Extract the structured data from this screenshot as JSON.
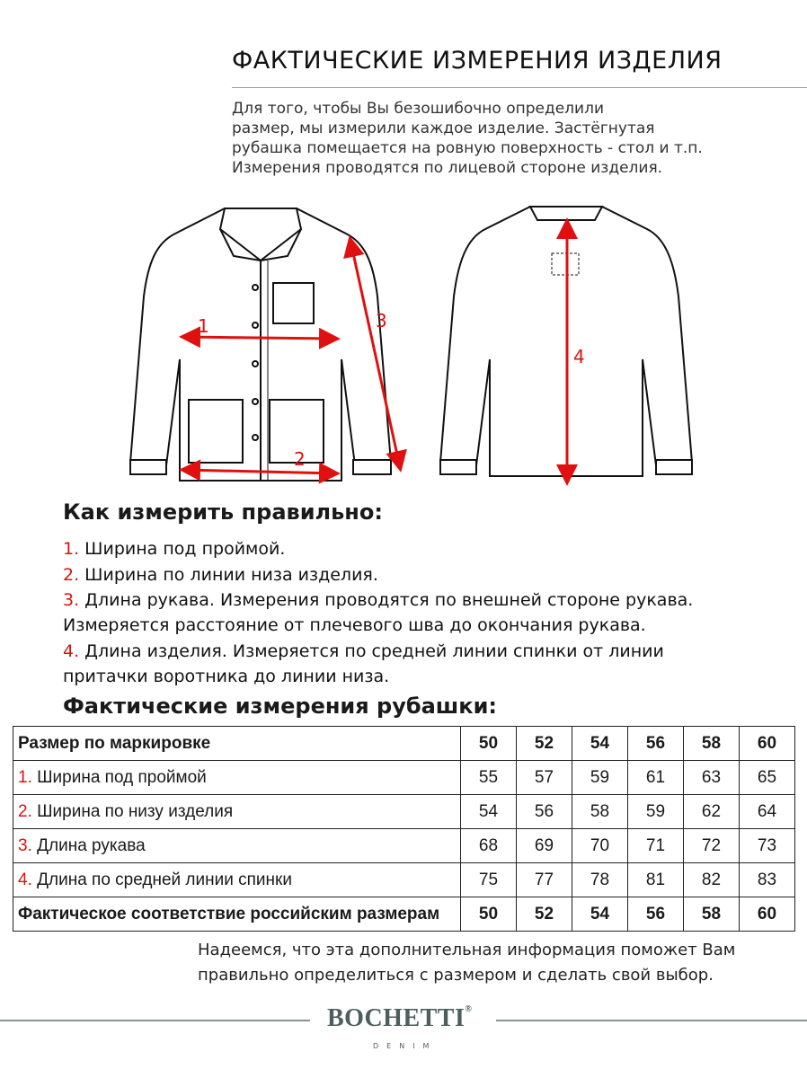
{
  "header": {
    "title": "ФАКТИЧЕСКИЕ ИЗМЕРЕНИЯ ИЗДЕЛИЯ",
    "intro": [
      "Для того, чтобы Вы безошибочно определили",
      "размер, мы измерили каждое изделие. Застёгнутая",
      "рубашка помещается на ровную поверхность - стол и т.п.",
      "Измерения проводятся по лицевой стороне изделия."
    ]
  },
  "diagram": {
    "labels": [
      "1",
      "2",
      "3",
      "4"
    ],
    "arrow_color": "#e01010"
  },
  "howto": {
    "title": "Как измерить правильно:",
    "steps": [
      {
        "num": "1.",
        "text": " Ширина под проймой."
      },
      {
        "num": "2.",
        "text": " Ширина по линии низа изделия."
      },
      {
        "num": "3.",
        "text": " Длина рукава. Измерения проводятся по внешней стороне рукава."
      },
      {
        "num": "",
        "text": "Измеряется расстояние от плечевого шва до окончания рукава."
      },
      {
        "num": "4.",
        "text": " Длина изделия. Измеряется по средней линии спинки от линии"
      },
      {
        "num": "",
        "text": "притачки воротника до линии низа."
      }
    ]
  },
  "table": {
    "title": "Фактические измерения рубашки:",
    "header": {
      "label": "Размер по маркировке",
      "values": [
        "50",
        "52",
        "54",
        "56",
        "58",
        "60"
      ]
    },
    "rows": [
      {
        "num": "1.",
        "label": " Ширина под проймой",
        "values": [
          "55",
          "57",
          "59",
          "61",
          "63",
          "65"
        ]
      },
      {
        "num": "2.",
        "label": " Ширина по низу изделия",
        "values": [
          "54",
          "56",
          "58",
          "59",
          "62",
          "64"
        ]
      },
      {
        "num": "3.",
        "label": " Длина рукава",
        "values": [
          "68",
          "69",
          "70",
          "71",
          "72",
          "73"
        ]
      },
      {
        "num": "4.",
        "label": " Длина по средней линии спинки",
        "values": [
          "75",
          "77",
          "78",
          "81",
          "82",
          "83"
        ]
      }
    ],
    "footer": {
      "label": "Фактическое соответствие российским размерам",
      "values": [
        "50",
        "52",
        "54",
        "56",
        "58",
        "60"
      ]
    }
  },
  "closing": [
    "Надеемся, что эта дополнительная информация поможет Вам",
    "правильно определиться с размером и сделать свой выбор."
  ],
  "brand": {
    "name": "BOCHETTI",
    "reg": "®",
    "sub": "DENIM",
    "color": "#4e5e5d"
  }
}
